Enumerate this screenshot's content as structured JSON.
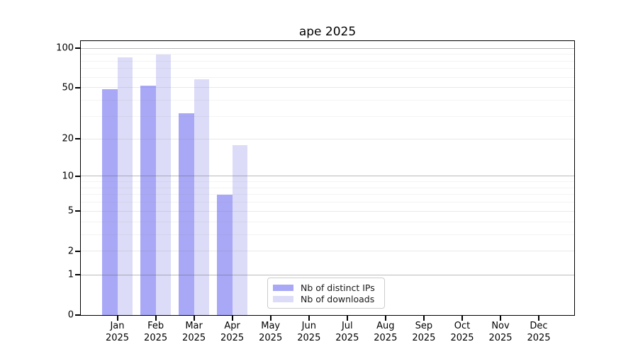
{
  "chart_data": {
    "type": "bar",
    "title": "ape 2025",
    "categories": [
      "Jan 2025",
      "Feb 2025",
      "Mar 2025",
      "Apr 2025",
      "May 2025",
      "Jun 2025",
      "Jul 2025",
      "Aug 2025",
      "Sep 2025",
      "Oct 2025",
      "Nov 2025",
      "Dec 2025"
    ],
    "series": [
      {
        "name": "Nb of distinct IPs",
        "color": "#a8a8f6",
        "values": [
          49,
          52,
          32,
          7,
          null,
          null,
          null,
          null,
          null,
          null,
          null,
          null
        ]
      },
      {
        "name": "Nb of downloads",
        "color": "#dcdcf8",
        "values": [
          86,
          90,
          58,
          18,
          null,
          null,
          null,
          null,
          null,
          null,
          null,
          null
        ]
      }
    ],
    "y_scale": "log1p",
    "ylim": [
      0,
      114
    ],
    "y_tick_values": [
      0,
      1,
      2,
      5,
      10,
      20,
      50,
      100
    ],
    "y_tick_labels": [
      "0",
      "1",
      "2",
      "5",
      "10",
      "20",
      "50",
      "100"
    ],
    "grid": {
      "on": true,
      "decade_lines": [
        1,
        10,
        100
      ],
      "level2_lines": [
        2,
        5,
        20,
        50
      ],
      "minor_lines": [
        3,
        4,
        6,
        7,
        8,
        9,
        30,
        40,
        60,
        70,
        80,
        90
      ],
      "decade_color": "rgba(90,90,90,0.42)",
      "level2_color": "rgba(120,120,120,0.16)",
      "minor_color": "rgba(140,140,140,0.10)"
    },
    "legend_position": "inside-bottom-center",
    "axis_color": "#000000",
    "background_color": "#ffffff"
  }
}
